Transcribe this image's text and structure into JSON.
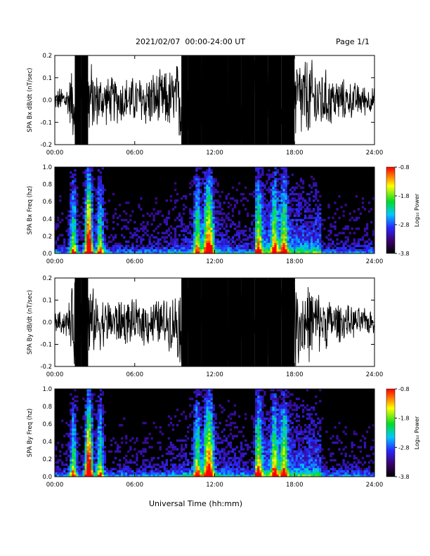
{
  "header": {
    "title": "2021/02/07  00:00-24:00 UT",
    "page": "Page 1/1"
  },
  "xlabel": "Universal Time (hh:mm)",
  "chart_data": [
    {
      "type": "line",
      "ylabel": "SPA Bx dB/dt (nT/sec)",
      "ylim": [
        -0.2,
        0.2
      ],
      "yticks": [
        "0.2",
        "0.1",
        "0.0",
        "-0.1",
        "-0.2"
      ],
      "xticks": [
        "00:00",
        "06:00",
        "12:00",
        "18:00",
        "24:00"
      ],
      "xlim_hours": [
        0,
        24
      ],
      "series": [
        {
          "x_hours": [
            0,
            0.5,
            1,
            1.5,
            2,
            2.5,
            3,
            4,
            5,
            6,
            7,
            8,
            9,
            9.5,
            10,
            11,
            12,
            13,
            14,
            15,
            16,
            17,
            18,
            19,
            20,
            21,
            22,
            23,
            24
          ],
          "envelope": [
            0.04,
            0.06,
            0.07,
            0.2,
            0.2,
            0.2,
            0.12,
            0.1,
            0.1,
            0.1,
            0.12,
            0.12,
            0.14,
            0.2,
            0.2,
            0.2,
            0.2,
            0.2,
            0.2,
            0.2,
            0.2,
            0.2,
            0.2,
            0.18,
            0.14,
            0.1,
            0.08,
            0.07,
            0.05
          ]
        }
      ]
    },
    {
      "type": "heatmap",
      "ylabel": "SPA Bx Freq (hz)",
      "ylim": [
        0.0,
        1.0
      ],
      "yticks": [
        "1.0",
        "0.8",
        "0.6",
        "0.4",
        "0.2",
        "0.0"
      ],
      "xticks": [
        "00:00",
        "06:00",
        "12:00",
        "18:00",
        "24:00"
      ],
      "colorbar": {
        "label": "Log₁₀ Power",
        "ticks": [
          "-0.8",
          "-1.8",
          "-2.8",
          "-3.8"
        ],
        "range": [
          -3.8,
          -0.8
        ]
      },
      "bursts_hours": [
        1.4,
        2.5,
        2.6,
        3.4,
        10.7,
        11.4,
        11.7,
        15.3,
        16.5,
        17.2
      ]
    },
    {
      "type": "line",
      "ylabel": "SPA By dB/dt (nT/sec)",
      "ylim": [
        -0.2,
        0.2
      ],
      "yticks": [
        "0.2",
        "0.1",
        "0.0",
        "-0.1",
        "-0.2"
      ],
      "xticks": [
        "00:00",
        "06:00",
        "12:00",
        "18:00",
        "24:00"
      ],
      "xlim_hours": [
        0,
        24
      ],
      "series": [
        {
          "x_hours": [
            0,
            0.5,
            1,
            1.5,
            2,
            2.5,
            3,
            4,
            5,
            6,
            7,
            8,
            9,
            9.5,
            10,
            11,
            12,
            13,
            14,
            15,
            16,
            17,
            18,
            19,
            20,
            21,
            22,
            23,
            24
          ],
          "envelope": [
            0.04,
            0.05,
            0.07,
            0.2,
            0.2,
            0.2,
            0.12,
            0.1,
            0.1,
            0.09,
            0.1,
            0.1,
            0.12,
            0.2,
            0.2,
            0.2,
            0.2,
            0.2,
            0.2,
            0.2,
            0.2,
            0.2,
            0.2,
            0.17,
            0.12,
            0.09,
            0.07,
            0.06,
            0.05
          ]
        }
      ]
    },
    {
      "type": "heatmap",
      "ylabel": "SPA By Freq (hz)",
      "ylim": [
        0.0,
        1.0
      ],
      "yticks": [
        "1.0",
        "0.8",
        "0.6",
        "0.4",
        "0.2",
        "0.0"
      ],
      "xticks": [
        "00:00",
        "06:00",
        "12:00",
        "18:00",
        "24:00"
      ],
      "colorbar": {
        "label": "Log₁₀ Power",
        "ticks": [
          "-0.8",
          "-1.8",
          "-2.8",
          "-3.8"
        ],
        "range": [
          -3.8,
          -0.8
        ]
      },
      "bursts_hours": [
        1.4,
        2.5,
        2.6,
        3.4,
        10.7,
        11.4,
        11.7,
        15.3,
        16.5,
        17.2
      ]
    }
  ]
}
